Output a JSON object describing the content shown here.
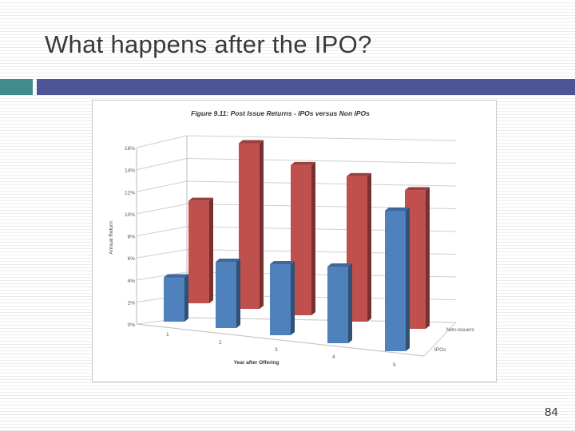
{
  "slide": {
    "title": "What happens after the IPO?",
    "page_number": "84"
  },
  "colors": {
    "teal_band": "#3f8b8e",
    "navy_band": "#4e5596",
    "series_non_issuers": "#c0504d",
    "series_ipos": "#4f81bd"
  },
  "chart_data": {
    "type": "bar",
    "title": "Figure 9.11: Post Issue Returns - IPOs versus Non IPOs",
    "xlabel": "Year after Offering",
    "ylabel": "Annual Return",
    "categories": [
      "1",
      "2",
      "3",
      "4",
      "5"
    ],
    "yticks": [
      "0%",
      "2%",
      "4%",
      "6%",
      "8%",
      "10%",
      "12%",
      "14%",
      "16%"
    ],
    "ylim": [
      0,
      16
    ],
    "series": [
      {
        "name": "Non-issuers",
        "values": [
          9.3,
          15.5,
          14.5,
          14.5,
          14.3
        ]
      },
      {
        "name": "IPOs",
        "values": [
          4.0,
          6.0,
          6.0,
          6.0,
          12.0
        ]
      }
    ],
    "grid": true,
    "legend": "right"
  }
}
